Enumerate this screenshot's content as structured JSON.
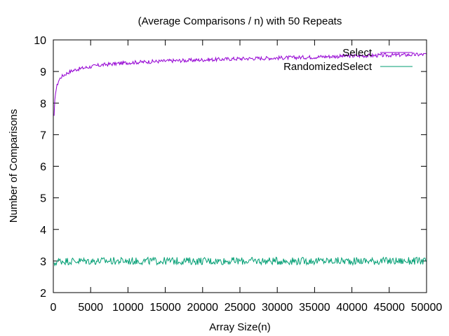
{
  "chart_data": {
    "type": "line",
    "title": "(Average Comparisons / n) with 50 Repeats",
    "xlabel": "Array Size(n)",
    "ylabel": "Number of Comparisons",
    "xlim": [
      0,
      50000
    ],
    "ylim": [
      2,
      10
    ],
    "xticks": [
      0,
      5000,
      10000,
      15000,
      20000,
      25000,
      30000,
      35000,
      40000,
      45000,
      50000
    ],
    "yticks": [
      2,
      3,
      4,
      5,
      6,
      7,
      8,
      9,
      10
    ],
    "grid": false,
    "legend_position": "top-right",
    "series": [
      {
        "name": "Select",
        "color": "#9400d3",
        "x": [
          100,
          200,
          300,
          500,
          700,
          1000,
          1500,
          2000,
          2500,
          3000,
          4000,
          5000,
          6000,
          7000,
          8000,
          9000,
          10000,
          12000,
          14000,
          16000,
          18000,
          20000,
          22000,
          24000,
          26000,
          28000,
          30000,
          32000,
          34000,
          36000,
          38000,
          40000,
          42000,
          44000,
          46000,
          48000,
          50000
        ],
        "y": [
          7.55,
          8.05,
          8.35,
          8.55,
          8.7,
          8.82,
          8.9,
          8.97,
          9.02,
          9.06,
          9.11,
          9.15,
          9.19,
          9.22,
          9.24,
          9.26,
          9.28,
          9.3,
          9.32,
          9.34,
          9.35,
          9.37,
          9.38,
          9.4,
          9.41,
          9.42,
          9.43,
          9.44,
          9.45,
          9.47,
          9.48,
          9.49,
          9.5,
          9.51,
          9.52,
          9.53,
          9.54
        ],
        "noise": 0.06
      },
      {
        "name": "RandomizedSelect",
        "color": "#009e73",
        "x": [
          100,
          300,
          500,
          1000,
          2000,
          5000,
          10000,
          15000,
          20000,
          25000,
          30000,
          35000,
          40000,
          45000,
          50000
        ],
        "y": [
          2.85,
          2.95,
          3.0,
          3.0,
          3.0,
          3.0,
          3.0,
          3.0,
          3.0,
          3.0,
          3.0,
          3.0,
          3.0,
          3.0,
          3.0
        ],
        "noise": 0.12
      }
    ]
  }
}
